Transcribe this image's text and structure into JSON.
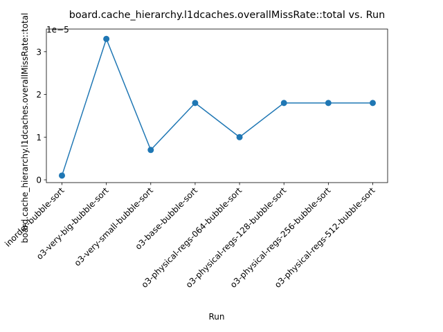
{
  "chart_data": {
    "type": "line",
    "title": "board.cache_hierarchy.l1dcaches.overallMissRate::total vs. Run",
    "xlabel": "Run",
    "ylabel": "board.cache_hierarchy.l1dcaches.overallMissRate::total",
    "y_offset_label": "1e−5",
    "categories": [
      "inorder-bubble-sort",
      "o3-very-big-bubble-sort",
      "o3-very-small-bubble-sort",
      "o3-base-bubble-sort",
      "o3-physical-regs-064-bubble-sort",
      "o3-physical-regs-128-bubble-sort",
      "o3-physical-regs-256-bubble-sort",
      "o3-physical-regs-512-bubble-sort"
    ],
    "series": [
      {
        "name": "overallMissRate",
        "values": [
          1e-06,
          3.3e-05,
          7e-06,
          1.8e-05,
          1e-05,
          1.8e-05,
          1.8e-05,
          1.8e-05
        ]
      }
    ],
    "yticks": [
      0,
      1,
      2,
      3
    ],
    "ylim": [
      0,
      3.45e-05
    ],
    "colors": {
      "line": "#1f77b4"
    },
    "grid": false
  }
}
